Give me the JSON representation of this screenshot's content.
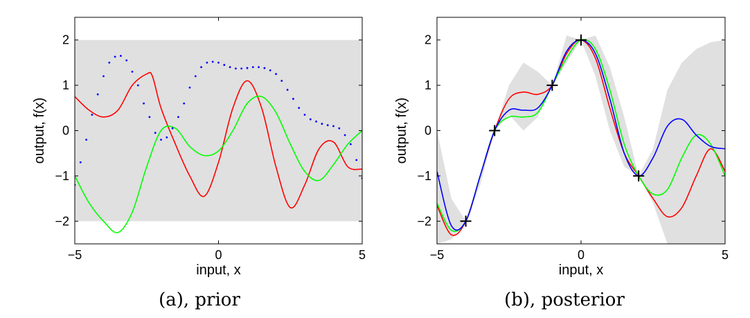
{
  "chart_data": [
    {
      "type": "line",
      "panel": "prior",
      "caption": "(a), prior",
      "xlabel": "input, x",
      "ylabel": "output, f(x)",
      "xlim": [
        -5,
        5
      ],
      "ylim": [
        -2.5,
        2.5
      ],
      "xticks": [
        -5,
        0,
        5
      ],
      "xtick_labels": [
        "−5",
        "0",
        "5"
      ],
      "yticks": [
        -2,
        -1,
        0,
        1,
        2
      ],
      "ytick_labels": [
        "−2",
        "−1",
        "0",
        "1",
        "2"
      ],
      "band": {
        "x": [
          -5,
          5
        ],
        "lower": [
          -2,
          -2
        ],
        "upper": [
          2,
          2
        ],
        "color": "#e0e0e0"
      },
      "series": [
        {
          "name": "red sample",
          "color": "#ff0000",
          "style": "line",
          "x": [
            -5,
            -4.5,
            -4,
            -3.5,
            -3,
            -2.5,
            -2.3,
            -2,
            -1.5,
            -1,
            -0.5,
            0,
            0.5,
            1,
            1.5,
            2,
            2.5,
            3,
            3.5,
            4,
            4.5,
            5
          ],
          "y": [
            0.75,
            0.45,
            0.3,
            0.45,
            1.0,
            1.25,
            1.2,
            0.5,
            -0.3,
            -1.0,
            -1.45,
            -0.7,
            0.5,
            1.1,
            0.5,
            -0.8,
            -1.7,
            -1.2,
            -0.4,
            -0.25,
            -0.8,
            -0.85
          ]
        },
        {
          "name": "green sample",
          "color": "#00ff00",
          "style": "line",
          "x": [
            -5,
            -4.5,
            -4,
            -3.5,
            -3,
            -2.5,
            -2,
            -1.5,
            -1,
            -0.5,
            0,
            0.5,
            1,
            1.5,
            2,
            2.5,
            3,
            3.5,
            4,
            4.5,
            5
          ],
          "y": [
            -1.0,
            -1.6,
            -2.0,
            -2.25,
            -1.8,
            -0.8,
            0.0,
            0.05,
            -0.35,
            -0.55,
            -0.45,
            0.0,
            0.6,
            0.75,
            0.4,
            -0.3,
            -0.9,
            -1.1,
            -0.75,
            -0.3,
            0.0
          ]
        },
        {
          "name": "blue sample",
          "color": "#0000ff",
          "style": "dots",
          "x": [
            -5,
            -4.8,
            -4.6,
            -4.4,
            -4.2,
            -4,
            -3.8,
            -3.6,
            -3.4,
            -3.2,
            -3,
            -2.8,
            -2.6,
            -2.4,
            -2.2,
            -2,
            -1.8,
            -1.6,
            -1.4,
            -1.2,
            -1,
            -0.8,
            -0.6,
            -0.4,
            -0.2,
            0,
            0.2,
            0.4,
            0.6,
            0.8,
            1,
            1.2,
            1.4,
            1.6,
            1.8,
            2,
            2.2,
            2.4,
            2.6,
            2.8,
            3,
            3.2,
            3.4,
            3.6,
            3.8,
            4,
            4.2,
            4.4,
            4.6,
            4.8,
            5
          ],
          "y": [
            -1.2,
            -0.7,
            -0.2,
            0.35,
            0.8,
            1.2,
            1.5,
            1.63,
            1.65,
            1.55,
            1.3,
            1.0,
            0.6,
            0.3,
            -0.05,
            -0.2,
            -0.15,
            0.05,
            0.3,
            0.6,
            0.95,
            1.2,
            1.4,
            1.5,
            1.52,
            1.5,
            1.45,
            1.4,
            1.37,
            1.37,
            1.38,
            1.4,
            1.4,
            1.38,
            1.33,
            1.25,
            1.1,
            0.9,
            0.7,
            0.5,
            0.35,
            0.25,
            0.2,
            0.15,
            0.12,
            0.1,
            0.05,
            -0.1,
            -0.3,
            -0.65,
            -1.05
          ]
        }
      ]
    },
    {
      "type": "line",
      "panel": "posterior",
      "caption": "(b), posterior",
      "xlabel": "input, x",
      "ylabel": "output, f(x)",
      "xlim": [
        -5,
        5
      ],
      "ylim": [
        -2.5,
        2.5
      ],
      "xticks": [
        -5,
        0,
        5
      ],
      "xtick_labels": [
        "−5",
        "0",
        "5"
      ],
      "yticks": [
        -2,
        -1,
        0,
        1,
        2
      ],
      "ytick_labels": [
        "−2",
        "−1",
        "0",
        "1",
        "2"
      ],
      "band": {
        "color": "#e0e0e0",
        "x": [
          -5,
          -4.5,
          -4,
          -3.5,
          -3,
          -2.5,
          -2,
          -1.5,
          -1,
          -0.5,
          0,
          0.5,
          1,
          1.5,
          2,
          2.5,
          3,
          3.5,
          4,
          4.5,
          5
        ],
        "lower": [
          -2.5,
          -2.4,
          -2.0,
          -1.2,
          0.0,
          0.35,
          0.0,
          0.3,
          1.0,
          1.5,
          2.0,
          1.2,
          0.0,
          -0.8,
          -1.0,
          -1.6,
          -2.5,
          -2.5,
          -2.5,
          -2.5,
          -2.5
        ],
        "upper": [
          0.0,
          -1.5,
          -2.0,
          -1.0,
          0.0,
          1.0,
          1.5,
          1.3,
          1.0,
          2.1,
          2.0,
          2.1,
          1.4,
          0.3,
          -1.0,
          -0.4,
          0.9,
          1.5,
          1.8,
          1.95,
          2.0
        ]
      },
      "series": [
        {
          "name": "red sample",
          "color": "#ff0000",
          "style": "line",
          "x": [
            -5,
            -4.5,
            -4,
            -3.5,
            -3,
            -2.5,
            -2,
            -1.5,
            -1,
            -0.5,
            0,
            0.5,
            1,
            1.5,
            2,
            2.5,
            3,
            3.5,
            4,
            4.5,
            5
          ],
          "y": [
            -1.65,
            -2.3,
            -2.0,
            -1.0,
            0.0,
            0.7,
            0.85,
            0.8,
            1.0,
            1.7,
            2.0,
            1.6,
            0.5,
            -0.5,
            -1.0,
            -1.5,
            -1.9,
            -1.7,
            -1.0,
            -0.4,
            -0.9
          ]
        },
        {
          "name": "green sample",
          "color": "#00ff00",
          "style": "line",
          "x": [
            -5,
            -4.5,
            -4,
            -3.5,
            -3,
            -2.5,
            -2,
            -1.5,
            -1,
            -0.5,
            0,
            0.5,
            1,
            1.5,
            2,
            2.5,
            3,
            3.5,
            4,
            4.5,
            5
          ],
          "y": [
            -1.6,
            -2.2,
            -2.0,
            -1.0,
            0.0,
            0.3,
            0.3,
            0.4,
            1.0,
            1.6,
            2.0,
            1.8,
            0.9,
            -0.3,
            -1.0,
            -1.4,
            -1.3,
            -0.6,
            -0.1,
            -0.3,
            -1.0
          ]
        },
        {
          "name": "blue sample",
          "color": "#0000ff",
          "style": "line",
          "x": [
            -5,
            -4.5,
            -4,
            -3.5,
            -3,
            -2.5,
            -2,
            -1.5,
            -1,
            -0.5,
            0,
            0.5,
            1,
            1.5,
            2,
            2.5,
            3,
            3.5,
            4,
            4.5,
            5
          ],
          "y": [
            -0.9,
            -2.1,
            -2.0,
            -1.0,
            0.0,
            0.45,
            0.45,
            0.5,
            1.0,
            1.75,
            2.0,
            1.7,
            0.7,
            -0.5,
            -1.0,
            -0.6,
            0.1,
            0.25,
            -0.1,
            -0.35,
            -0.4
          ]
        }
      ],
      "observations": {
        "marker": "+",
        "x": [
          -4,
          -3,
          -1,
          0,
          2
        ],
        "y": [
          -2,
          0,
          1,
          2,
          -1
        ]
      }
    }
  ]
}
